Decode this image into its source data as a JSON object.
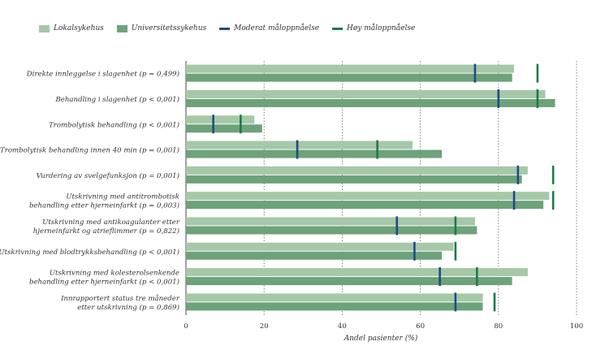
{
  "colors": {
    "local": "#a6c8a8",
    "university": "#6da27a",
    "moderate": "#1d4a86",
    "high": "#1f7a4a",
    "grid": "#666666",
    "text": "#333333"
  },
  "chart_data": {
    "type": "bar",
    "orientation": "horizontal",
    "legend_position": "top-left",
    "grid": true,
    "xlabel": "Andel pasienter (%)",
    "xlim": [
      0,
      100
    ],
    "xticks": [
      "0",
      "20",
      "40",
      "60",
      "80",
      "100"
    ],
    "legend": [
      {
        "key": "local",
        "label": "Lokalsykehus",
        "kind": "bar"
      },
      {
        "key": "university",
        "label": "Universitetssykehus",
        "kind": "bar"
      },
      {
        "key": "moderate",
        "label": "Moderat måloppnåelse",
        "kind": "line"
      },
      {
        "key": "high",
        "label": "Høy måloppnåelse",
        "kind": "line"
      }
    ],
    "categories": [
      [
        "Direkte innleggelse i slagenhet (p = 0,499)"
      ],
      [
        "Behandling i slagenhet (p < 0,001)"
      ],
      [
        "Trombolytisk behandling (p < 0,001)"
      ],
      [
        "Trombolytisk behandling innen 40 min (p = 0,001)"
      ],
      [
        "Vurdering av svelgefunksjon (p = 0,001)"
      ],
      [
        "Utskrivning med antitrombotisk",
        "behandling etter hjerneinfarkt (p = 0,003)"
      ],
      [
        "Utskrivning med antikoagulanter etter",
        "hjerneinfarkt og atrieflimmer (p = 0,822)"
      ],
      [
        "Utskrivning med blodtrykksbehandling (p < 0,001)"
      ],
      [
        "Utskrivning med kolesterolsenkende",
        "behandling etter hjerneinfarkt (p < 0,001)"
      ],
      [
        "Innrapportert status tre måneder",
        "etter utskrivning (p = 0,869)"
      ]
    ],
    "series": [
      {
        "name": "Lokalsykehus",
        "key": "local",
        "values": [
          84,
          92,
          17.5,
          58,
          87.5,
          93,
          74,
          68.5,
          87.5,
          76
        ]
      },
      {
        "name": "Universitetssykehus",
        "key": "university",
        "values": [
          83.5,
          94.5,
          19.5,
          65.5,
          86,
          91.5,
          74.5,
          65.5,
          83.5,
          76
        ]
      }
    ],
    "targets": {
      "moderate": [
        74,
        80,
        7,
        28.5,
        85,
        84,
        54,
        58.5,
        65,
        69
      ],
      "high": [
        90,
        90,
        14,
        49,
        94,
        94,
        69,
        69,
        74.5,
        79
      ]
    }
  }
}
